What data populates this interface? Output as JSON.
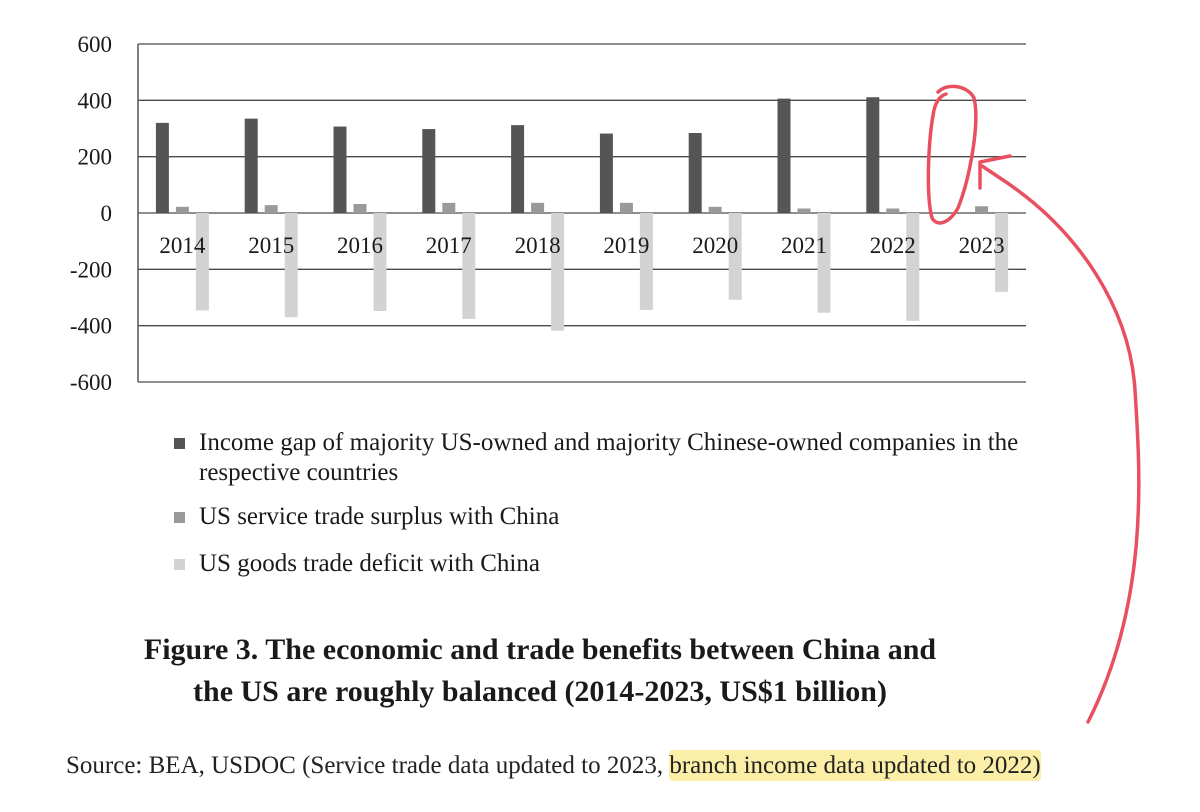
{
  "chart_data": {
    "type": "bar",
    "categories": [
      "2014",
      "2015",
      "2016",
      "2017",
      "2018",
      "2019",
      "2020",
      "2021",
      "2022",
      "2023"
    ],
    "series": [
      {
        "name": "Income gap of majority US-owned and majority Chinese-owned companies in the respective countries",
        "color": "#555555",
        "values": [
          320,
          335,
          307,
          298,
          312,
          282,
          284,
          406,
          411,
          null
        ]
      },
      {
        "name": "US service trade surplus with China",
        "color": "#9a9a9a",
        "values": [
          22,
          28,
          32,
          36,
          36,
          36,
          22,
          16,
          16,
          24
        ]
      },
      {
        "name": "US goods trade deficit with China",
        "color": "#d3d3d3",
        "values": [
          -346,
          -370,
          -348,
          -376,
          -418,
          -344,
          -308,
          -354,
          -383,
          -280
        ]
      }
    ],
    "yticks": [
      "600",
      "400",
      "200",
      "0",
      "-200",
      "-400",
      "-600"
    ],
    "ylim": [
      -600,
      600
    ],
    "grid": true,
    "legend_position": "bottom",
    "title": "Figure 3. The economic and trade benefits between China and the US are roughly balanced (2014-2023, US$1 billion)",
    "title_lines": [
      "Figure 3. The economic and trade benefits between China and",
      "the US are roughly balanced (2014-2023, US$1 billion)"
    ]
  },
  "source": {
    "prefix": "Source: BEA, USDOC (Service trade data updated to 2023, ",
    "highlighted": "branch income data updated to 2022)"
  },
  "colors": {
    "highlight": "#fbeea6",
    "annotation": "#e8505f"
  }
}
